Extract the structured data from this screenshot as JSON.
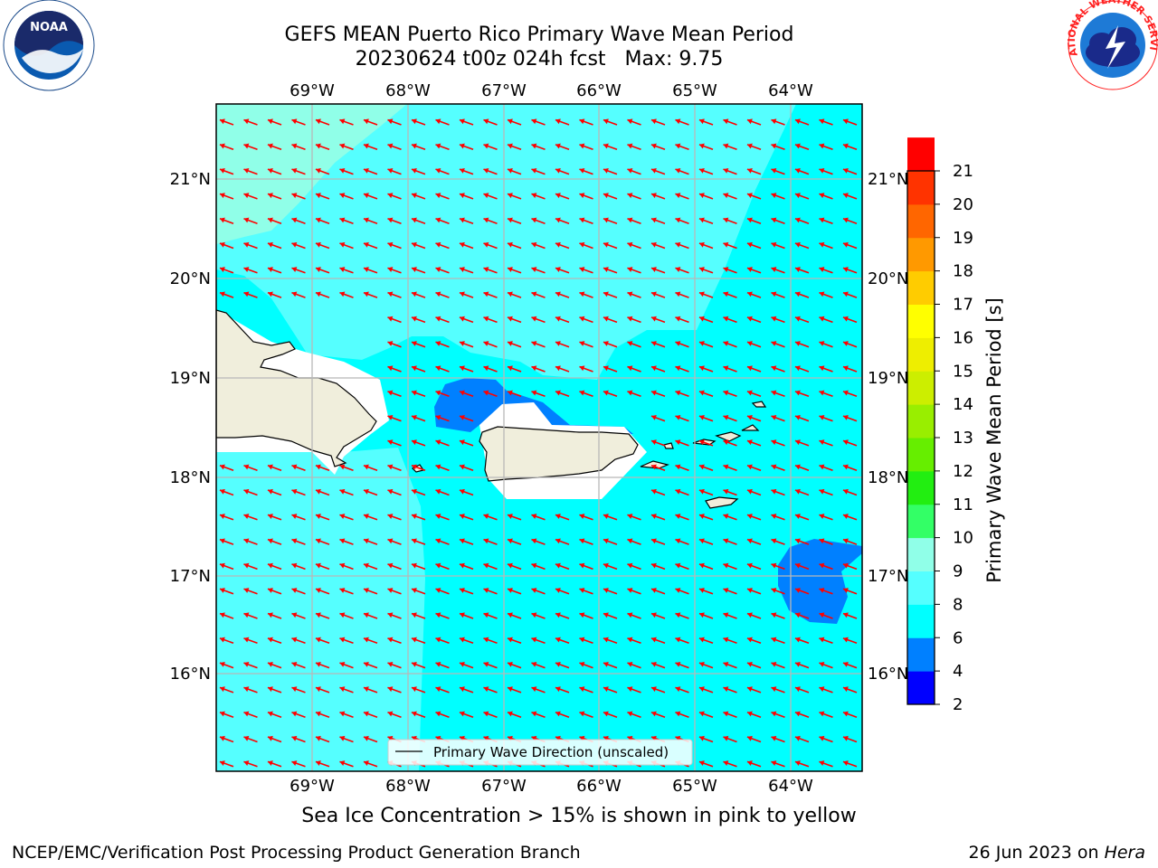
{
  "header": {
    "title_line1": "GEFS MEAN Puerto Rico Primary Wave Mean Period",
    "title_line2": "20230624 t00z 024h fcst",
    "max_text": "Max: 9.75"
  },
  "map": {
    "lon_labels": [
      "69°W",
      "68°W",
      "67°W",
      "66°W",
      "65°W",
      "64°W"
    ],
    "lat_labels": [
      "21°N",
      "20°N",
      "19°N",
      "18°N",
      "17°N",
      "16°N"
    ],
    "legend_label": "Primary Wave Direction (unscaled)",
    "colors": {
      "ocean": "#00ffff",
      "ocean_light": "#55ffff",
      "ocean_pale": "#90ffe8",
      "period_low": "#0080ff",
      "land": "#f0eedc",
      "arrow": "#ff0000"
    }
  },
  "colorbar": {
    "label": "Primary Wave Mean Period [s]",
    "ticks": [
      "2",
      "4",
      "6",
      "8",
      "9",
      "10",
      "11",
      "12",
      "13",
      "14",
      "15",
      "16",
      "17",
      "18",
      "19",
      "20",
      "21"
    ],
    "colors": [
      "#0000ff",
      "#0080ff",
      "#00ffff",
      "#55ffff",
      "#90ffe8",
      "#33ff66",
      "#22ee11",
      "#66ee00",
      "#99ee00",
      "#ccee00",
      "#eeee00",
      "#ffff00",
      "#ffcc00",
      "#ff9900",
      "#ff6600",
      "#ff3300",
      "#ff0000"
    ]
  },
  "logos": {
    "left": "NOAA",
    "right": "NATIONAL WEATHER SERVICE"
  },
  "footer": {
    "ice_note": "Sea Ice Concentration > 15% is shown in pink to yellow",
    "credit": "NCEP/EMC/Verification Post Processing Product Generation Branch",
    "date": "26 Jun 2023 on",
    "host": "Hera"
  }
}
